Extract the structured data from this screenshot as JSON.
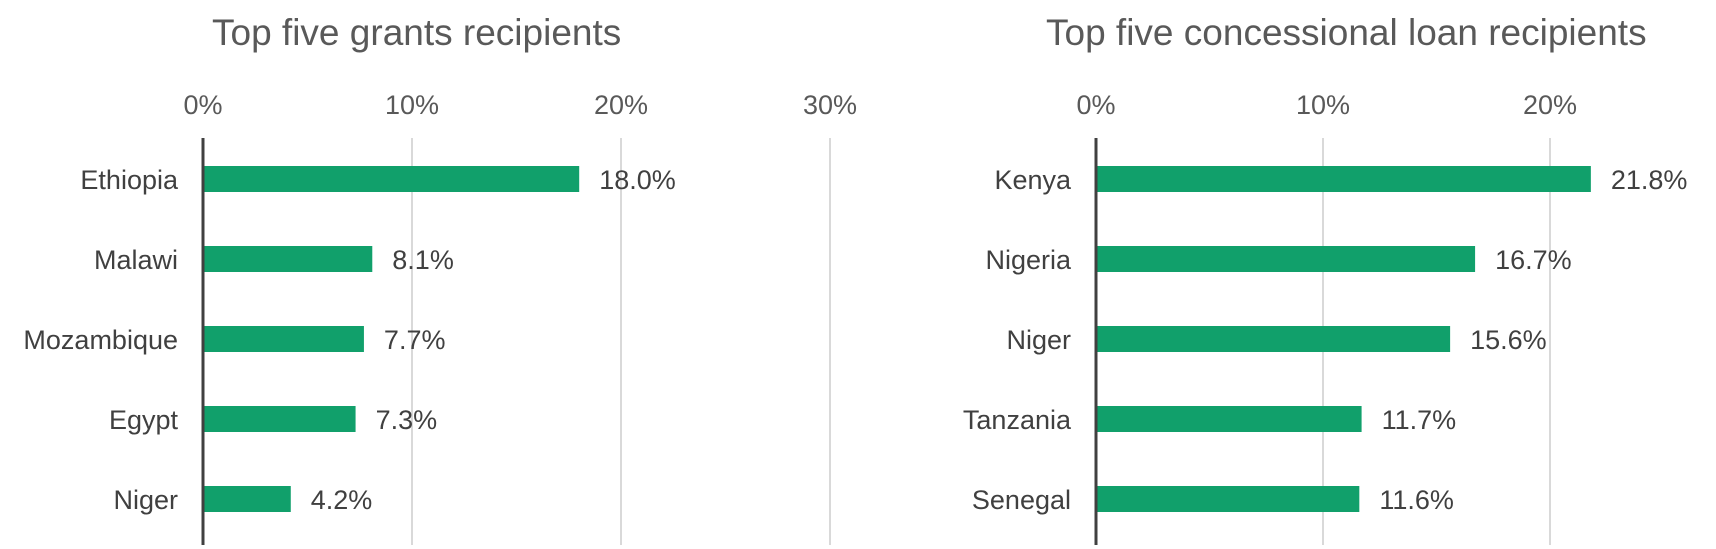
{
  "colors": {
    "bar": "#11a06b",
    "grid": "#d9d9d9",
    "axis": "#404040"
  },
  "chart_data": [
    {
      "type": "bar",
      "orientation": "horizontal",
      "title": "Top five grants recipients",
      "categories": [
        "Ethiopia",
        "Malawi",
        "Mozambique",
        "Egypt",
        "Niger"
      ],
      "values": [
        18.0,
        8.1,
        7.7,
        7.3,
        4.2
      ],
      "value_labels": [
        "18.0%",
        "8.1%",
        "7.7%",
        "7.3%",
        "4.2%"
      ],
      "xticks": [
        0,
        10,
        20,
        30
      ],
      "xtick_labels": [
        "0%",
        "10%",
        "20%",
        "30%"
      ],
      "xlim": [
        0,
        30
      ],
      "grid": true,
      "xaxis_position": "top"
    },
    {
      "type": "bar",
      "orientation": "horizontal",
      "title": "Top five concessional loan recipients",
      "categories": [
        "Kenya",
        "Nigeria",
        "Niger",
        "Tanzania",
        "Senegal"
      ],
      "values": [
        21.8,
        16.7,
        15.6,
        11.7,
        11.6
      ],
      "value_labels": [
        "21.8%",
        "16.7%",
        "15.6%",
        "11.7%",
        "11.6%"
      ],
      "xticks": [
        0,
        10,
        20
      ],
      "xtick_labels": [
        "0%",
        "10%",
        "20%"
      ],
      "xlim": [
        0,
        27.5
      ],
      "grid": true,
      "xaxis_position": "top"
    }
  ]
}
